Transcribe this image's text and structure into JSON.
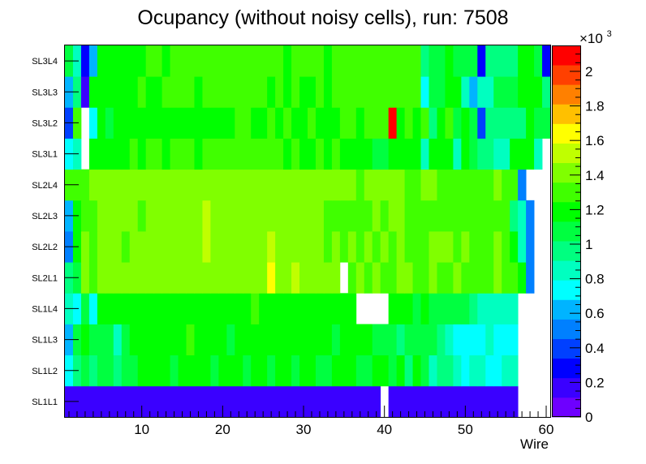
{
  "chart_data": {
    "type": "heatmap",
    "title": "Ocupancy (without noisy cells), run: 7508",
    "xlabel": "Wire",
    "ylabel": "",
    "xlim": [
      0.5,
      60.5
    ],
    "x_ticks": [
      10,
      20,
      30,
      40,
      50,
      60
    ],
    "x_tick_labels": [
      "10",
      "20",
      "30",
      "40",
      "50",
      "60"
    ],
    "layers": [
      "SL1L1",
      "SL1L2",
      "SL1L3",
      "SL1L4",
      "SL2L1",
      "SL2L2",
      "SL2L3",
      "SL2L4",
      "SL3L1",
      "SL3L2",
      "SL3L3",
      "SL3L4"
    ],
    "zlim": [
      0,
      2150
    ],
    "z_exponent_label": "×10",
    "z_exponent_power": "3",
    "z_ticks": [
      0,
      200,
      400,
      600,
      800,
      1000,
      1200,
      1400,
      1600,
      1800,
      2000
    ],
    "z_tick_labels": [
      "0",
      "0.2",
      "0.4",
      "0.6",
      "0.8",
      "1",
      "1.2",
      "1.4",
      "1.6",
      "1.8",
      "2"
    ],
    "palette": [
      "#6e00ff",
      "#3a00ff",
      "#0000ff",
      "#0040ff",
      "#0080ff",
      "#00b4ff",
      "#00ffff",
      "#00ffc0",
      "#00ff80",
      "#00ff40",
      "#00ff00",
      "#40ff00",
      "#80ff00",
      "#c0ff00",
      "#ffff00",
      "#ffc000",
      "#ff8000",
      "#ff4000",
      "#ff0000"
    ],
    "values": [
      [
        160,
        160,
        160,
        160,
        160,
        160,
        160,
        160,
        160,
        160,
        160,
        160,
        160,
        160,
        160,
        160,
        160,
        160,
        160,
        160,
        160,
        160,
        160,
        160,
        160,
        160,
        160,
        160,
        160,
        160,
        160,
        160,
        160,
        160,
        160,
        160,
        160,
        160,
        160,
        null,
        160,
        160,
        160,
        160,
        160,
        160,
        160,
        160,
        160,
        160,
        160,
        160,
        160,
        160,
        160,
        160,
        null,
        null,
        null,
        null
      ],
      [
        680,
        920,
        1080,
        960,
        1080,
        1090,
        980,
        1080,
        1060,
        1160,
        1190,
        1170,
        1150,
        1080,
        1200,
        1220,
        1190,
        1180,
        1090,
        1210,
        1140,
        1180,
        1040,
        1170,
        1170,
        1110,
        1180,
        1160,
        1130,
        1180,
        1160,
        1120,
        1100,
        1220,
        1180,
        1180,
        1110,
        1100,
        1160,
        1190,
        1080,
        1170,
        990,
        1170,
        1020,
        900,
        990,
        980,
        860,
        760,
        860,
        850,
        790,
        740,
        800,
        800,
        null,
        null,
        null,
        null
      ],
      [
        640,
        1020,
        1160,
        1030,
        1120,
        1090,
        880,
        1050,
        1150,
        1160,
        1160,
        1240,
        1180,
        1200,
        1180,
        1250,
        1170,
        1240,
        1220,
        1200,
        1130,
        1170,
        1140,
        1220,
        1140,
        1170,
        1180,
        1160,
        1190,
        1140,
        1140,
        1150,
        1200,
        1130,
        1200,
        1140,
        1200,
        1160,
        1070,
        1020,
        1060,
        1010,
        1060,
        1040,
        1080,
        1080,
        980,
        800,
        780,
        780,
        780,
        750,
        830,
        720,
        720,
        720,
        null,
        null,
        null,
        null
      ],
      [
        800,
        710,
        1060,
        720,
        1170,
        1150,
        1240,
        1140,
        1170,
        1140,
        1210,
        1170,
        1170,
        1200,
        1190,
        1180,
        1240,
        1190,
        1180,
        1190,
        1170,
        1220,
        1190,
        1250,
        1220,
        1240,
        1190,
        1230,
        1170,
        1240,
        1180,
        1200,
        1230,
        1190,
        1220,
        1180,
        null,
        null,
        null,
        null,
        1200,
        1160,
        1160,
        1120,
        1160,
        1120,
        1040,
        1060,
        1060,
        1050,
        940,
        860,
        860,
        860,
        860,
        860,
        null,
        null,
        null,
        null
      ],
      [
        940,
        1120,
        1390,
        1320,
        1400,
        1400,
        1400,
        1400,
        1410,
        1450,
        1420,
        1440,
        1460,
        1470,
        1470,
        1470,
        1470,
        1470,
        1470,
        1470,
        1470,
        1470,
        1440,
        1470,
        1470,
        1640,
        1470,
        1450,
        1480,
        1440,
        1430,
        1430,
        1400,
        1370,
        null,
        1350,
        1370,
        1310,
        1370,
        1350,
        1340,
        1410,
        1360,
        1340,
        1300,
        1410,
        1340,
        1340,
        1360,
        1320,
        1330,
        1300,
        1260,
        1370,
        1300,
        1320,
        1220,
        500,
        null,
        null
      ],
      [
        500,
        1220,
        1370,
        1350,
        1400,
        1380,
        1370,
        1350,
        1370,
        1410,
        1410,
        1410,
        1410,
        1420,
        1430,
        1440,
        1450,
        1550,
        1410,
        1420,
        1410,
        1400,
        1430,
        1420,
        1410,
        1480,
        1400,
        1400,
        1410,
        1400,
        1410,
        1390,
        1280,
        1380,
        1330,
        1420,
        1350,
        1390,
        1340,
        1430,
        1340,
        1410,
        1340,
        1330,
        1340,
        1390,
        1370,
        1380,
        1350,
        1390,
        1350,
        1330,
        1280,
        1390,
        1250,
        1180,
        800,
        560,
        null,
        null
      ],
      [
        670,
        1200,
        1250,
        1330,
        1380,
        1390,
        1370,
        1370,
        1410,
        1350,
        1400,
        1410,
        1400,
        1420,
        1420,
        1420,
        1420,
        1570,
        1410,
        1410,
        1400,
        1400,
        1390,
        1390,
        1380,
        1400,
        1380,
        1400,
        1410,
        1400,
        1400,
        1380,
        1320,
        1330,
        1310,
        1250,
        1340,
        1320,
        1360,
        1350,
        1380,
        1380,
        1290,
        1340,
        1330,
        1320,
        1340,
        1310,
        1270,
        1280,
        1330,
        1320,
        1280,
        1330,
        1250,
        980,
        800,
        560,
        null,
        null
      ],
      [
        1250,
        1340,
        1350,
        1360,
        1400,
        1390,
        1400,
        1400,
        1370,
        1400,
        1410,
        1420,
        1410,
        1430,
        1430,
        1420,
        1420,
        1430,
        1430,
        1420,
        1410,
        1410,
        1400,
        1420,
        1400,
        1400,
        1400,
        1380,
        1400,
        1400,
        1400,
        1400,
        1390,
        1400,
        1390,
        1400,
        1310,
        1390,
        1400,
        1390,
        1410,
        1400,
        1350,
        1300,
        1400,
        1380,
        1350,
        1350,
        1350,
        1350,
        1320,
        1310,
        1320,
        1400,
        1300,
        1350,
        560,
        null,
        null,
        null
      ],
      [
        750,
        880,
        null,
        1170,
        1150,
        1240,
        1180,
        1240,
        1270,
        1220,
        1290,
        1250,
        1240,
        1260,
        1290,
        1320,
        1230,
        1290,
        1290,
        1250,
        1300,
        1310,
        1260,
        1290,
        1300,
        1260,
        1270,
        1230,
        1300,
        1190,
        1240,
        1260,
        1240,
        1250,
        1230,
        1180,
        1220,
        1230,
        1080,
        1130,
        1210,
        1230,
        1170,
        1230,
        900,
        1170,
        1230,
        1230,
        900,
        1190,
        1060,
        990,
        950,
        820,
        860,
        1160,
        1200,
        1220,
        840,
        null
      ],
      [
        400,
        1260,
        null,
        700,
        1180,
        1130,
        1180,
        1180,
        1180,
        1210,
        1220,
        1210,
        1180,
        1240,
        1200,
        1150,
        1230,
        1230,
        1190,
        1160,
        1180,
        1290,
        1280,
        1190,
        1220,
        1290,
        1220,
        1260,
        1240,
        1200,
        1250,
        1240,
        1230,
        1220,
        1280,
        1300,
        1190,
        1250,
        1270,
        1350,
        2130,
        1240,
        1250,
        1230,
        1260,
        920,
        1180,
        1250,
        1120,
        1240,
        1070,
        400,
        920,
        920,
        920,
        920,
        1000,
        1220,
        1120,
        1050
      ],
      [
        640,
        970,
        210,
        1140,
        1190,
        1230,
        1200,
        1170,
        1240,
        1250,
        1170,
        1190,
        1260,
        1270,
        1270,
        1280,
        1230,
        1270,
        1300,
        1270,
        1340,
        1280,
        1250,
        1270,
        1260,
        1240,
        1250,
        1230,
        1260,
        1230,
        1240,
        1330,
        1230,
        1260,
        1300,
        1340,
        1310,
        1290,
        1290,
        1270,
        1290,
        1280,
        1270,
        1270,
        680,
        1120,
        1110,
        1240,
        1200,
        900,
        660,
        880,
        880,
        1030,
        1020,
        1050,
        1210,
        1210,
        1210,
        970
      ],
      [
        1090,
        880,
        240,
        640,
        1240,
        1240,
        1200,
        1240,
        1210,
        1220,
        1260,
        1280,
        1230,
        1270,
        1310,
        1300,
        1260,
        1300,
        1270,
        1300,
        1270,
        1320,
        1300,
        1260,
        1280,
        1270,
        1260,
        1230,
        1280,
        1280,
        1320,
        1270,
        1200,
        1290,
        1310,
        1340,
        1310,
        1290,
        1330,
        1300,
        1300,
        1300,
        1250,
        1260,
        1000,
        1100,
        1100,
        1160,
        1040,
        1080,
        1100,
        230,
        990,
        990,
        960,
        980,
        1140,
        1140,
        1130,
        230
      ]
    ]
  }
}
